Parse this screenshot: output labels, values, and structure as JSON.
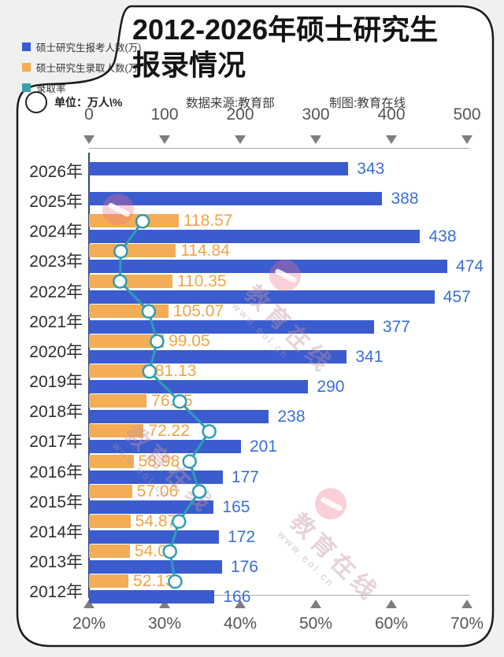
{
  "title": {
    "line1": "2012-2026年硕士研究生",
    "line2": "报录情况"
  },
  "meta": {
    "unit_label": "单位：万人\\%",
    "source": "数据来源:教育部",
    "credit": "制图:教育在线"
  },
  "legend": {
    "items": [
      {
        "label": "硕士研究生报考人数(万)",
        "color": "#3b5ccf"
      },
      {
        "label": "硕士研究生录取人数(万)",
        "color": "#f3ad55"
      },
      {
        "label": "录取率",
        "color": "#3f9fa8"
      }
    ]
  },
  "watermark": {
    "brand": "教育在线",
    "url": "www.eol.cn"
  },
  "chart_data": {
    "type": "bar",
    "orientation": "horizontal",
    "title": "2012-2026年硕士研究生报录情况",
    "categories": [
      "2026年",
      "2025年",
      "2024年",
      "2023年",
      "2022年",
      "2021年",
      "2020年",
      "2019年",
      "2018年",
      "2017年",
      "2016年",
      "2015年",
      "2014年",
      "2013年",
      "2012年"
    ],
    "series": [
      {
        "name": "硕士研究生报考人数(万)",
        "type": "bar",
        "color": "#3b5ccf",
        "label_color": "#3a6ed8",
        "values": [
          343,
          388,
          438,
          474,
          457,
          377,
          341,
          290,
          238,
          201,
          177,
          165,
          172,
          176,
          166
        ]
      },
      {
        "name": "硕士研究生录取人数(万)",
        "type": "bar",
        "color": "#f3ad55",
        "label_color": "#f0a446",
        "values": [
          null,
          null,
          118.57,
          114.84,
          110.35,
          105.07,
          99.05,
          81.13,
          76.25,
          72.22,
          58.98,
          57.06,
          54.87,
          54.09,
          52.13
        ]
      },
      {
        "name": "录取率",
        "type": "line",
        "color": "#2e9db3",
        "unit": "%",
        "estimated": true,
        "values": [
          null,
          null,
          27.1,
          24.2,
          24.1,
          27.9,
          29.0,
          28.0,
          32.0,
          35.9,
          33.3,
          34.6,
          31.9,
          30.7,
          31.4
        ]
      }
    ],
    "x_axis_top": {
      "ticks": [
        "0",
        "100",
        "200",
        "300",
        "400",
        "500"
      ],
      "range": [
        0,
        500
      ],
      "grid": false
    },
    "x_axis_bottom": {
      "ticks": [
        "20%",
        "30%",
        "40%",
        "50%",
        "60%",
        "70%"
      ],
      "range": [
        20,
        70
      ],
      "grid": false
    },
    "legend_position": "top-left"
  }
}
